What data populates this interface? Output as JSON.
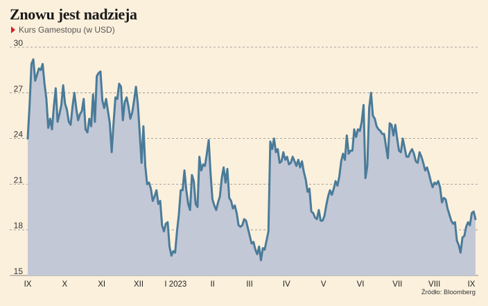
{
  "title": "Znowu jest nadzieja",
  "subtitle": "Kurs Gamestopu (w USD)",
  "source": "Źródło: Bloomberg",
  "colors": {
    "background": "#fbf0dc",
    "line": "#4a7b99",
    "area": "#c3c8d6",
    "marker": "#d61f26",
    "grid": "#8a8a8a"
  },
  "chart_data": {
    "type": "area",
    "title": "Znowu jest nadzieja",
    "subtitle": "Kurs Gamestopu (w USD)",
    "ylim": [
      15,
      30
    ],
    "yticks": [
      15,
      18,
      21,
      24,
      27,
      30
    ],
    "grid": "horizontal dashed",
    "xticks": [
      "IX",
      "X",
      "XI",
      "XII",
      "I 2023",
      "II",
      "III",
      "IV",
      "V",
      "VI",
      "VII",
      "VIII",
      "IX"
    ],
    "series": [
      {
        "values": [
          24.0,
          26.2,
          28.9,
          29.2,
          27.8,
          28.2,
          28.6,
          28.5,
          28.9,
          27.6,
          26.6,
          24.7,
          25.3,
          24.6,
          26.1,
          27.3,
          25.1,
          25.6,
          26.2,
          27.5,
          26.3,
          25.9,
          25.1,
          24.9,
          26.1,
          27.0,
          26.0,
          25.2,
          25.6,
          25.8,
          26.6,
          24.6,
          24.4,
          25.3,
          24.8,
          26.9,
          25.1,
          28.1,
          28.3,
          28.4,
          26.5,
          26.0,
          26.6,
          25.8,
          25.0,
          23.1,
          25.0,
          26.7,
          26.6,
          27.6,
          27.4,
          25.2,
          26.4,
          26.7,
          26.1,
          25.3,
          25.7,
          26.5,
          27.4,
          26.3,
          24.4,
          22.4,
          24.8,
          22.2,
          21.0,
          21.1,
          20.7,
          19.9,
          20.2,
          20.6,
          19.7,
          19.9,
          18.3,
          17.9,
          18.4,
          18.5,
          16.9,
          16.3,
          16.6,
          16.5,
          17.9,
          19.0,
          20.6,
          20.6,
          21.9,
          20.6,
          19.7,
          19.3,
          21.6,
          21.2,
          19.7,
          19.5,
          22.8,
          21.9,
          22.3,
          22.2,
          23.0,
          23.9,
          21.7,
          20.0,
          19.6,
          19.3,
          19.8,
          20.2,
          21.4,
          22.1,
          21.1,
          22.0,
          20.1,
          19.9,
          19.4,
          19.6,
          19.1,
          18.3,
          18.2,
          18.3,
          18.7,
          18.6,
          18.1,
          17.6,
          17.1,
          17.2,
          16.7,
          16.4,
          16.9,
          16.0,
          16.8,
          16.7,
          17.3,
          17.9,
          23.8,
          23.3,
          24.0,
          23.1,
          23.3,
          22.4,
          22.5,
          23.1,
          22.6,
          22.8,
          22.3,
          22.4,
          22.8,
          22.5,
          22.2,
          22.6,
          22.1,
          22.5,
          21.8,
          21.3,
          20.5,
          20.7,
          19.2,
          19.1,
          18.8,
          18.7,
          19.3,
          18.6,
          18.6,
          18.9,
          19.6,
          20.2,
          20.6,
          20.3,
          20.7,
          21.2,
          20.9,
          21.5,
          22.5,
          23.0,
          22.6,
          24.2,
          23.0,
          23.2,
          23.2,
          24.6,
          24.1,
          24.6,
          24.5,
          25.1,
          26.2,
          21.4,
          22.2,
          26.0,
          27.0,
          25.5,
          25.3,
          24.8,
          24.6,
          24.5,
          24.3,
          24.3,
          23.5,
          22.7,
          25.0,
          24.9,
          24.2,
          24.9,
          24.0,
          23.2,
          23.1,
          24.0,
          23.4,
          22.8,
          22.8,
          23.1,
          23.3,
          23.0,
          22.5,
          22.4,
          23.1,
          22.8,
          22.4,
          21.9,
          22.1,
          21.7,
          21.2,
          20.8,
          21.1,
          21.0,
          21.2,
          20.8,
          19.8,
          20.1,
          20.0,
          19.4,
          19.0,
          18.6,
          18.4,
          18.5,
          17.3,
          17.0,
          16.5,
          17.5,
          17.6,
          18.2,
          18.5,
          18.3,
          19.1,
          19.2,
          18.7
        ]
      }
    ]
  }
}
